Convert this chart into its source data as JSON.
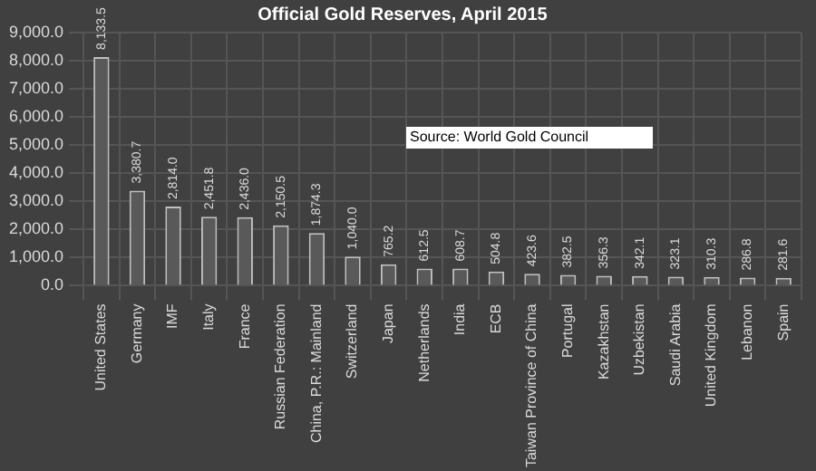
{
  "chart_data": {
    "type": "bar",
    "title": "Official Gold Reserves, April 2015",
    "categories": [
      "United States",
      "Germany",
      "IMF",
      "Italy",
      "France",
      "Russian Federation",
      "China, P.R.: Mainland",
      "Switzerland",
      "Japan",
      "Netherlands",
      "India",
      "ECB",
      "Taiwan Province of China",
      "Portugal",
      "Kazakhstan",
      "Uzbekistan",
      "Saudi Arabia",
      "United Kingdom",
      "Lebanon",
      "Spain"
    ],
    "values": [
      8133.5,
      3380.7,
      2814.0,
      2451.8,
      2436.0,
      2150.5,
      1874.3,
      1040.0,
      765.2,
      612.5,
      608.7,
      504.8,
      423.6,
      382.5,
      356.3,
      342.1,
      323.1,
      310.3,
      286.8,
      281.6
    ],
    "value_labels": [
      "8,133.5",
      "3,380.7",
      "2,814.0",
      "2,451.8",
      "2,436.0",
      "2,150.5",
      "1,874.3",
      "1,040.0",
      "765.2",
      "612.5",
      "608.7",
      "504.8",
      "423.6",
      "382.5",
      "356.3",
      "342.1",
      "323.1",
      "310.3",
      "286.8",
      "281.6"
    ],
    "color": "#595959",
    "ylim": [
      0,
      9000
    ],
    "yticks": [
      {
        "value": 0,
        "label": "0.0"
      },
      {
        "value": 1000,
        "label": "1,000.0"
      },
      {
        "value": 2000,
        "label": "2,000.0"
      },
      {
        "value": 3000,
        "label": "3,000.0"
      },
      {
        "value": 4000,
        "label": "4,000.0"
      },
      {
        "value": 5000,
        "label": "5,000.0"
      },
      {
        "value": 6000,
        "label": "6,000.0"
      },
      {
        "value": 7000,
        "label": "7,000.0"
      },
      {
        "value": 8000,
        "label": "8,000.0"
      },
      {
        "value": 9000,
        "label": "9,000.0"
      }
    ],
    "grid": true,
    "annotations": [
      "Source: World Gold Council"
    ]
  }
}
